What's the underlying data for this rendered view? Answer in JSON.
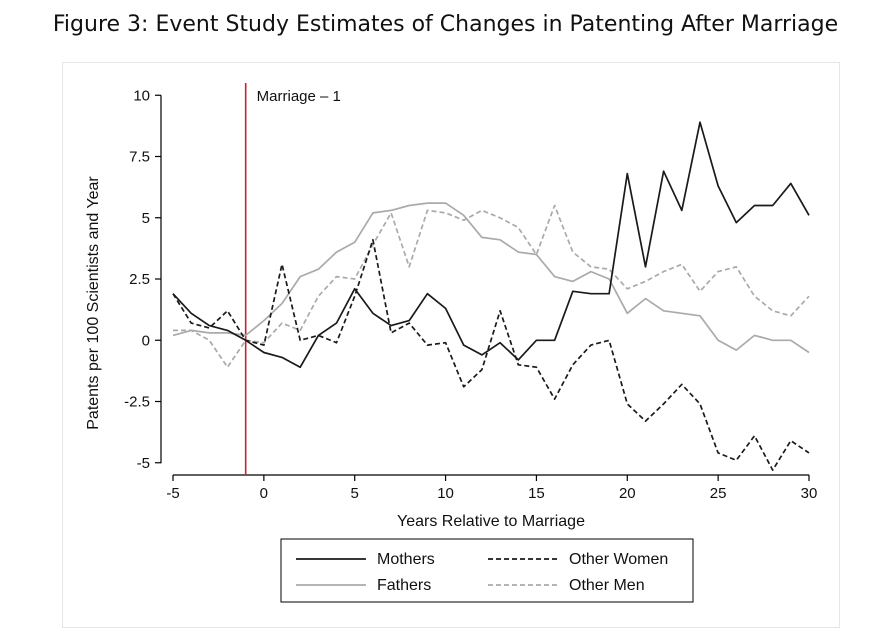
{
  "figure_title": "Figure 3: Event Study Estimates of Changes in Patenting After Marriage",
  "chart_data": {
    "type": "line",
    "xlabel": "Years Relative to Marriage",
    "ylabel": "Patents per 100 Scientists and Year",
    "xlim": [
      -5,
      30
    ],
    "ylim": [
      -5.5,
      10.5
    ],
    "xticks": [
      -5,
      0,
      5,
      10,
      15,
      20,
      25,
      30
    ],
    "xtick_labels": [
      "-5",
      "0",
      "5",
      "10",
      "15",
      "20",
      "25",
      "30"
    ],
    "yticks": [
      -5,
      -2.5,
      0,
      2.5,
      5,
      7.5,
      10
    ],
    "ytick_labels": [
      "-5",
      "-2.5",
      "0",
      "2.5",
      "5",
      "7.5",
      "10"
    ],
    "grid": false,
    "legend": "bottom",
    "x": [
      -5,
      -4,
      -3,
      -2,
      -1,
      0,
      1,
      2,
      3,
      4,
      5,
      6,
      7,
      8,
      9,
      10,
      11,
      12,
      13,
      14,
      15,
      16,
      17,
      18,
      19,
      20,
      21,
      22,
      23,
      24,
      25,
      26,
      27,
      28,
      29,
      30
    ],
    "annotation": {
      "x": -1,
      "label": "Marriage – 1",
      "color": "#cc1f30"
    },
    "series": [
      {
        "name": "Mothers",
        "color": "#1a1a1a",
        "dash": "solid",
        "values": [
          1.9,
          1.1,
          0.6,
          0.4,
          0.0,
          -0.5,
          -0.7,
          -1.1,
          0.2,
          0.7,
          2.1,
          1.1,
          0.6,
          0.8,
          1.9,
          1.3,
          -0.2,
          -0.6,
          -0.1,
          -0.8,
          0.0,
          0.0,
          2.0,
          1.9,
          1.9,
          6.8,
          3.0,
          6.9,
          5.3,
          8.9,
          6.3,
          4.8,
          5.5,
          5.5,
          6.4,
          5.1
        ]
      },
      {
        "name": "Other Women",
        "color": "#1a1a1a",
        "dash": "dashed",
        "values": [
          1.9,
          0.7,
          0.5,
          1.2,
          0.0,
          -0.2,
          3.1,
          0.0,
          0.2,
          -0.1,
          1.8,
          4.1,
          0.3,
          0.7,
          -0.2,
          -0.1,
          -1.9,
          -1.2,
          1.2,
          -1.0,
          -1.1,
          -2.4,
          -1.0,
          -0.2,
          0.0,
          -2.6,
          -3.3,
          -2.6,
          -1.8,
          -2.6,
          -4.6,
          -4.9,
          -3.9,
          -5.3,
          -4.1,
          -4.6
        ]
      },
      {
        "name": "Fathers",
        "color": "#aaaaaa",
        "dash": "solid",
        "values": [
          0.2,
          0.4,
          0.3,
          0.3,
          0.2,
          0.8,
          1.5,
          2.6,
          2.9,
          3.6,
          4.0,
          5.2,
          5.3,
          5.5,
          5.6,
          5.6,
          5.1,
          4.2,
          4.1,
          3.6,
          3.5,
          2.6,
          2.4,
          2.8,
          2.5,
          1.1,
          1.7,
          1.2,
          1.1,
          1.0,
          0.0,
          -0.4,
          0.2,
          0.0,
          0.0,
          -0.5
        ]
      },
      {
        "name": "Other Men",
        "color": "#aaaaaa",
        "dash": "dashed",
        "values": [
          0.4,
          0.4,
          0.0,
          -1.1,
          0.0,
          -0.1,
          0.7,
          0.4,
          1.8,
          2.6,
          2.5,
          3.9,
          5.2,
          3.0,
          5.3,
          5.2,
          4.9,
          5.3,
          5.0,
          4.6,
          3.5,
          5.5,
          3.6,
          3.0,
          2.9,
          2.1,
          2.4,
          2.8,
          3.1,
          2.0,
          2.8,
          3.0,
          1.8,
          1.2,
          1.0,
          1.8
        ]
      }
    ]
  }
}
